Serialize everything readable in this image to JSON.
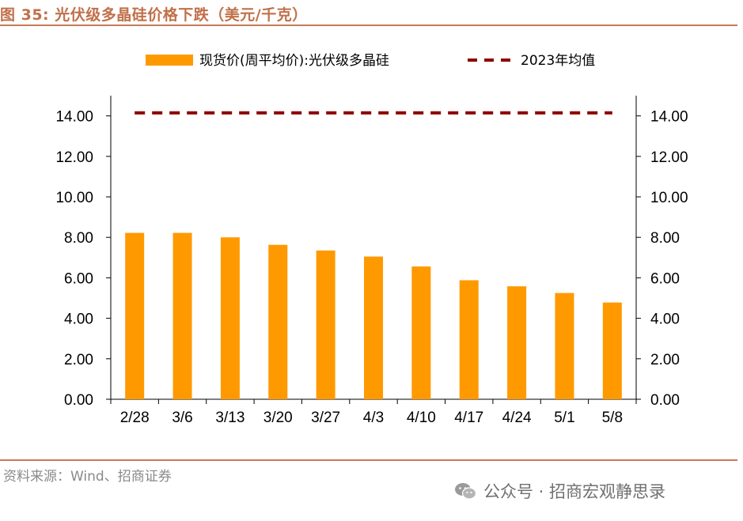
{
  "figure": {
    "title": "图 35:  光伏级多晶硅价格下跌（美元/千克）",
    "source": "资料来源：Wind、招商证券",
    "watermark": "公众号 · 招商宏观静思录"
  },
  "colors": {
    "bar": "#ff9900",
    "avg_line": "#8b0000",
    "rule": "#c97a58",
    "title": "#c0704a"
  },
  "chart_data": {
    "type": "bar",
    "title": "光伏级多晶硅价格下跌（美元/千克）",
    "categories": [
      "2/28",
      "3/6",
      "3/13",
      "3/20",
      "3/27",
      "4/3",
      "4/10",
      "4/17",
      "4/24",
      "5/1",
      "5/8"
    ],
    "series": [
      {
        "name": "现货价(周平均价):光伏级多晶硅",
        "type": "bar",
        "values": [
          8.22,
          8.22,
          8.0,
          7.63,
          7.35,
          7.05,
          6.56,
          5.88,
          5.58,
          5.25,
          4.78
        ]
      },
      {
        "name": "2023年均值",
        "type": "line",
        "style": "dashed",
        "values": [
          14.15,
          14.15,
          14.15,
          14.15,
          14.15,
          14.15,
          14.15,
          14.15,
          14.15,
          14.15,
          14.15
        ]
      }
    ],
    "y_ticks": [
      "0.00",
      "2.00",
      "4.00",
      "6.00",
      "8.00",
      "10.00",
      "12.00",
      "14.00"
    ],
    "ylim": [
      0,
      15
    ],
    "y2lim": [
      0,
      15
    ],
    "xlabel": "",
    "ylabel": "",
    "legend_position": "top",
    "grid": false
  }
}
